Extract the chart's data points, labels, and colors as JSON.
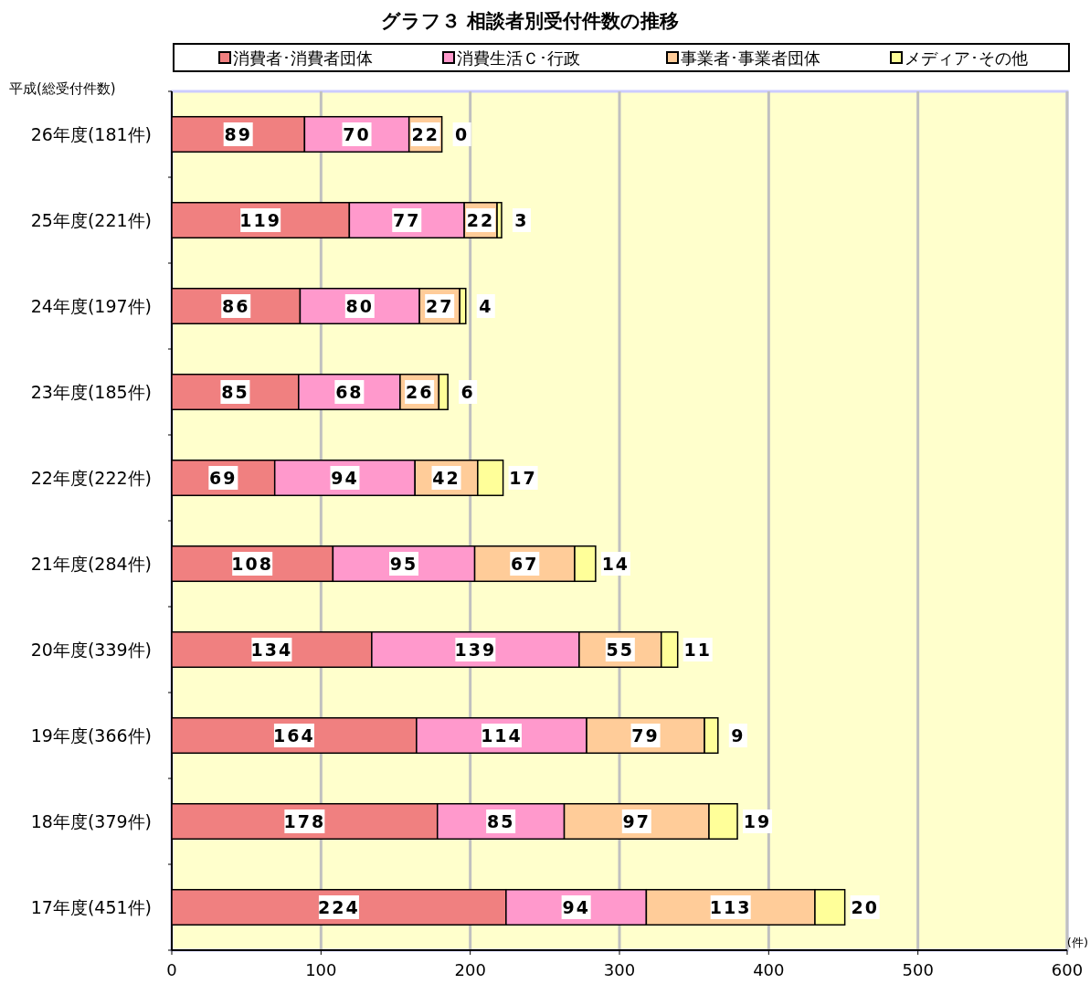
{
  "chart_data": {
    "type": "bar",
    "orientation": "horizontal",
    "stacked": true,
    "title": "グラフ３ 相談者別受付件数の推移",
    "ylabel": "平成(総受付件数)",
    "xlabel": "(件)",
    "categories": [
      "26年度(181件)",
      "25年度(221件)",
      "24年度(197件)",
      "23年度(185件)",
      "22年度(222件)",
      "21年度(284件)",
      "20年度(339件)",
      "19年度(366件)",
      "18年度(379件)",
      "17年度(451件)"
    ],
    "series": [
      {
        "name": "消費者･消費者団体",
        "color": "#f08080",
        "values": [
          89,
          119,
          86,
          85,
          69,
          108,
          134,
          164,
          178,
          224
        ]
      },
      {
        "name": "消費生活Ｃ･行政",
        "color": "#ff99cc",
        "values": [
          70,
          77,
          80,
          68,
          94,
          95,
          139,
          114,
          85,
          94
        ]
      },
      {
        "name": "事業者･事業者団体",
        "color": "#ffcc99",
        "values": [
          22,
          22,
          27,
          26,
          42,
          67,
          55,
          79,
          97,
          113
        ]
      },
      {
        "name": "メディア･その他",
        "color": "#ffff99",
        "values": [
          0,
          3,
          4,
          6,
          17,
          14,
          11,
          9,
          19,
          20
        ]
      }
    ],
    "xlim": [
      0,
      600
    ],
    "xticks": [
      0,
      100,
      200,
      300,
      400,
      500,
      600
    ],
    "grid": "x",
    "legend": "top",
    "data_labels": true
  }
}
